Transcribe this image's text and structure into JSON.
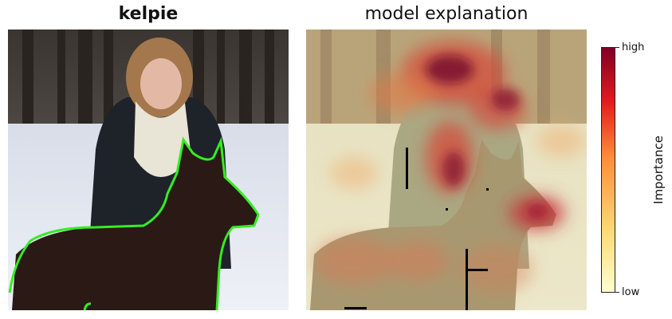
{
  "panels": {
    "left": {
      "title": "kelpie"
    },
    "right": {
      "title": "model explanation"
    }
  },
  "colorbar": {
    "label": "Importance",
    "tick_high": "high",
    "tick_low": "low",
    "colors": {
      "low": "#ffffcc",
      "mid": "#fd8d3c",
      "high": "#800026"
    }
  },
  "outline_color": "#33ee22"
}
